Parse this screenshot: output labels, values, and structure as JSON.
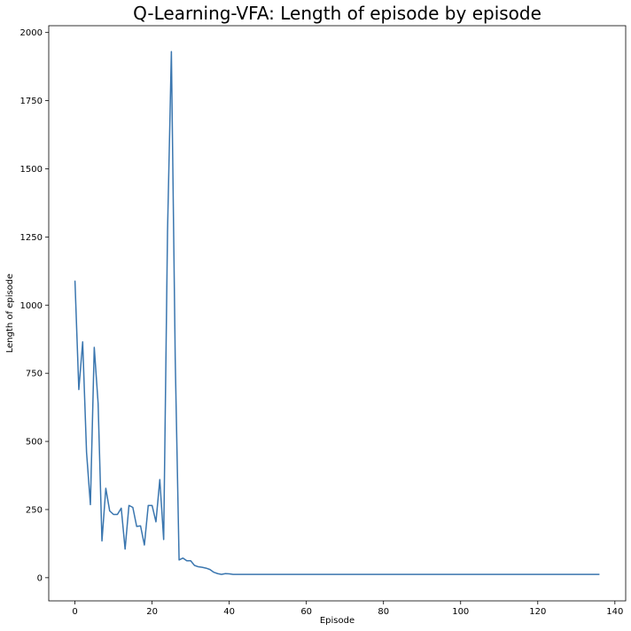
{
  "chart_data": {
    "type": "line",
    "title": "Q-Learning-VFA: Length of episode by episode",
    "xlabel": "Episode",
    "ylabel": "Length of episode",
    "xlim": [
      -6.8,
      142.8
    ],
    "ylim": [
      -85,
      2025
    ],
    "xticks": [
      0,
      20,
      40,
      60,
      80,
      100,
      120,
      140
    ],
    "yticks": [
      0,
      250,
      500,
      750,
      1000,
      1250,
      1500,
      1750,
      2000
    ],
    "grid": false,
    "legend": false,
    "colors": {
      "line": "#3a76af"
    },
    "series": [
      {
        "x": [
          0,
          1,
          2,
          3,
          4,
          5,
          6,
          7,
          8,
          9,
          10,
          11,
          12,
          13,
          14,
          15,
          16,
          17,
          18,
          19,
          20,
          21,
          22,
          23,
          24,
          25,
          26,
          27,
          28,
          29,
          30,
          31,
          32,
          33,
          34,
          35,
          36,
          37,
          38,
          39,
          40,
          41,
          42,
          136
        ],
        "values": [
          1090,
          690,
          865,
          460,
          268,
          845,
          640,
          135,
          328,
          245,
          232,
          232,
          255,
          105,
          265,
          258,
          188,
          190,
          120,
          265,
          265,
          205,
          360,
          140,
          1270,
          1930,
          800,
          65,
          72,
          62,
          62,
          45,
          40,
          38,
          35,
          30,
          20,
          15,
          12,
          15,
          14,
          12,
          12,
          12
        ]
      }
    ]
  }
}
